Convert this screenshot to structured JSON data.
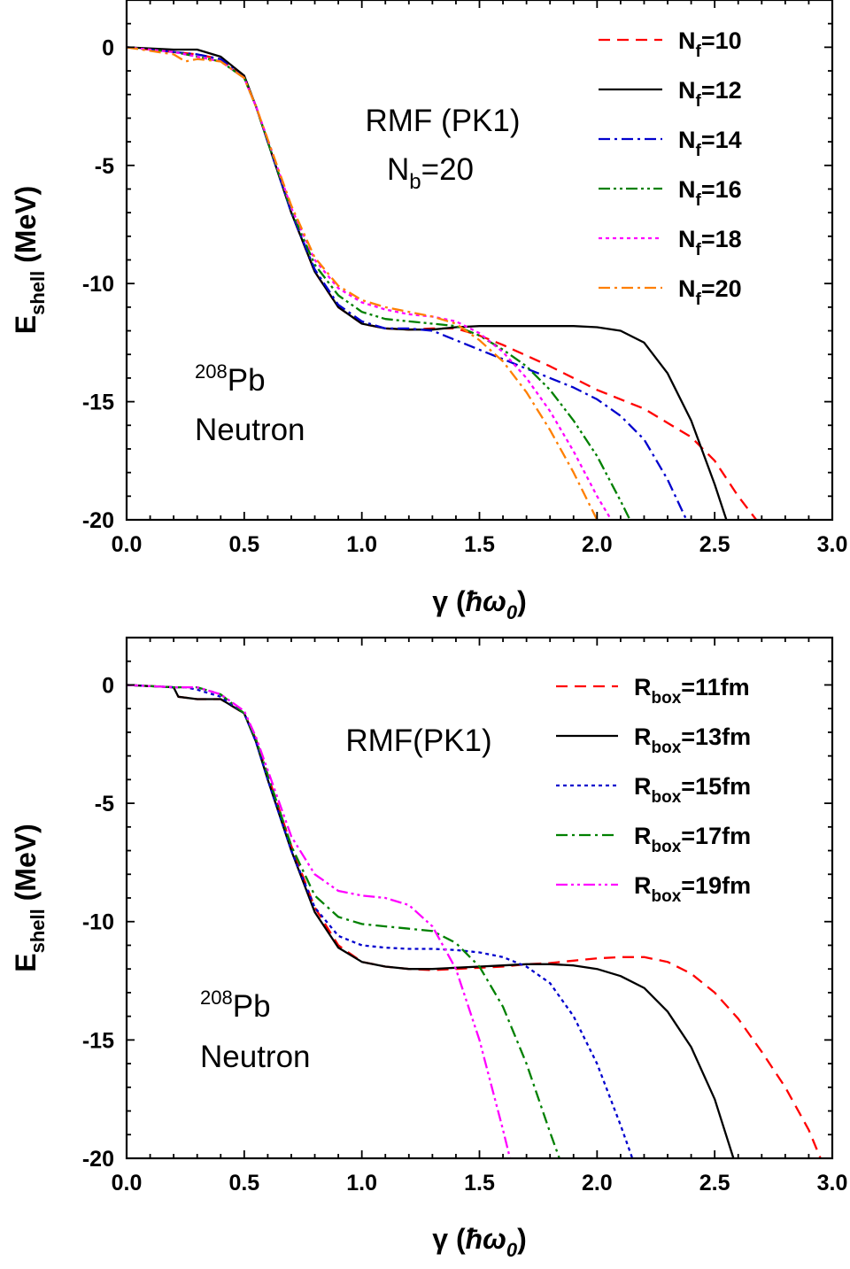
{
  "chart_data": [
    {
      "type": "line",
      "xlabel": "γ (ħω0)",
      "ylabel": "Eshell (MeV)",
      "xlim": [
        0.0,
        3.0
      ],
      "ylim": [
        -20,
        2
      ],
      "xticks": [
        "0.0",
        "0.5",
        "1.0",
        "1.5",
        "2.0",
        "2.5",
        "3.0"
      ],
      "yticks": [
        "0",
        "-5",
        "-10",
        "-15",
        "-20"
      ],
      "legend_position": "top-right",
      "annotations": {
        "method": "RMF (PK1)",
        "param": "Nb=20",
        "nucleus": "208Pb",
        "particle": "Neutron"
      },
      "series": [
        {
          "name": "Nf=10",
          "color": "#ff0000",
          "dash": "dash",
          "x": [
            0.0,
            0.2,
            0.3,
            0.4,
            0.5,
            0.55,
            0.6,
            0.7,
            0.8,
            0.9,
            1.0,
            1.1,
            1.2,
            1.3,
            1.4,
            1.5,
            1.6,
            1.8,
            2.0,
            2.2,
            2.4,
            2.5,
            2.6,
            2.7
          ],
          "y": [
            0,
            -0.2,
            -0.3,
            -0.5,
            -1.3,
            -2.5,
            -4.0,
            -7.0,
            -9.5,
            -11.0,
            -11.7,
            -11.9,
            -11.95,
            -11.9,
            -11.9,
            -12.2,
            -12.6,
            -13.5,
            -14.5,
            -15.3,
            -16.5,
            -17.5,
            -19.0,
            -20.3
          ]
        },
        {
          "name": "Nf=12",
          "color": "#000000",
          "dash": "solid",
          "x": [
            0.0,
            0.2,
            0.3,
            0.4,
            0.5,
            0.55,
            0.6,
            0.7,
            0.8,
            0.9,
            1.0,
            1.1,
            1.2,
            1.3,
            1.4,
            1.5,
            1.6,
            1.7,
            1.8,
            1.9,
            2.0,
            2.1,
            2.2,
            2.3,
            2.4,
            2.5,
            2.55
          ],
          "y": [
            0,
            -0.1,
            -0.1,
            -0.4,
            -1.2,
            -2.5,
            -4.0,
            -7.0,
            -9.5,
            -11.0,
            -11.7,
            -11.9,
            -11.95,
            -11.95,
            -11.85,
            -11.8,
            -11.8,
            -11.8,
            -11.8,
            -11.8,
            -11.85,
            -12.0,
            -12.5,
            -13.8,
            -15.8,
            -18.5,
            -20.0
          ]
        },
        {
          "name": "Nf=14",
          "color": "#0000cd",
          "dash": "dashdot",
          "x": [
            0.0,
            0.2,
            0.3,
            0.4,
            0.5,
            0.55,
            0.6,
            0.7,
            0.8,
            0.9,
            1.0,
            1.1,
            1.2,
            1.3,
            1.4,
            1.5,
            1.6,
            1.7,
            1.8,
            1.9,
            2.0,
            2.1,
            2.2,
            2.3,
            2.38
          ],
          "y": [
            0,
            -0.2,
            -0.3,
            -0.5,
            -1.3,
            -2.5,
            -4.0,
            -7.0,
            -9.4,
            -10.9,
            -11.6,
            -11.9,
            -11.9,
            -12.0,
            -12.4,
            -12.8,
            -13.2,
            -13.6,
            -14.0,
            -14.4,
            -14.9,
            -15.6,
            -16.6,
            -18.3,
            -20.0
          ]
        },
        {
          "name": "Nf=16",
          "color": "#008000",
          "dash": "dashdotdot",
          "x": [
            0.0,
            0.2,
            0.3,
            0.4,
            0.5,
            0.55,
            0.6,
            0.7,
            0.8,
            0.9,
            1.0,
            1.1,
            1.2,
            1.3,
            1.4,
            1.5,
            1.6,
            1.7,
            1.8,
            1.9,
            2.0,
            2.1,
            2.14
          ],
          "y": [
            0,
            -0.2,
            -0.4,
            -0.6,
            -1.3,
            -2.5,
            -4.0,
            -6.9,
            -9.2,
            -10.5,
            -11.2,
            -11.5,
            -11.6,
            -11.7,
            -11.8,
            -12.2,
            -12.8,
            -13.5,
            -14.5,
            -15.8,
            -17.3,
            -19.2,
            -20.0
          ]
        },
        {
          "name": "Nf=18",
          "color": "#ff00ff",
          "dash": "dot",
          "x": [
            0.0,
            0.2,
            0.3,
            0.4,
            0.5,
            0.55,
            0.6,
            0.7,
            0.8,
            0.9,
            1.0,
            1.1,
            1.2,
            1.3,
            1.4,
            1.5,
            1.6,
            1.7,
            1.8,
            1.9,
            2.0,
            2.06
          ],
          "y": [
            0,
            -0.2,
            -0.4,
            -0.6,
            -1.3,
            -2.5,
            -3.9,
            -6.8,
            -9.0,
            -10.2,
            -10.8,
            -11.1,
            -11.3,
            -11.4,
            -11.6,
            -12.1,
            -12.9,
            -14.0,
            -15.4,
            -17.1,
            -19.0,
            -20.0
          ]
        },
        {
          "name": "Nf=20",
          "color": "#ff7f00",
          "dash": "dashdot",
          "x": [
            0.0,
            0.2,
            0.25,
            0.3,
            0.4,
            0.5,
            0.55,
            0.6,
            0.7,
            0.8,
            0.9,
            1.0,
            1.1,
            1.2,
            1.3,
            1.4,
            1.5,
            1.6,
            1.7,
            1.8,
            1.9,
            2.0
          ],
          "y": [
            0,
            -0.3,
            -0.6,
            -0.5,
            -0.6,
            -1.3,
            -2.5,
            -3.9,
            -6.7,
            -8.9,
            -10.1,
            -10.7,
            -11.0,
            -11.2,
            -11.4,
            -11.7,
            -12.4,
            -13.3,
            -14.6,
            -16.2,
            -18.0,
            -20.0
          ]
        }
      ]
    },
    {
      "type": "line",
      "xlabel": "γ (ħω0)",
      "ylabel": "Eshell (MeV)",
      "xlim": [
        0.0,
        3.0
      ],
      "ylim": [
        -20,
        2
      ],
      "xticks": [
        "0.0",
        "0.5",
        "1.0",
        "1.5",
        "2.0",
        "2.5",
        "3.0"
      ],
      "yticks": [
        "0",
        "-5",
        "-10",
        "-15",
        "-20"
      ],
      "legend_position": "top-right",
      "annotations": {
        "method": "RMF(PK1)",
        "nucleus": "208Pb",
        "particle": "Neutron"
      },
      "series": [
        {
          "name": "Rbox=11fm",
          "color": "#ff0000",
          "dash": "dash",
          "x": [
            0.0,
            0.2,
            0.22,
            0.3,
            0.4,
            0.5,
            0.55,
            0.6,
            0.7,
            0.8,
            0.9,
            1.0,
            1.1,
            1.2,
            1.3,
            1.4,
            1.5,
            1.6,
            1.7,
            1.8,
            1.9,
            2.0,
            2.1,
            2.2,
            2.3,
            2.4,
            2.5,
            2.6,
            2.7,
            2.8,
            2.9,
            2.95
          ],
          "y": [
            0,
            -0.1,
            -0.5,
            -0.6,
            -0.6,
            -1.2,
            -2.3,
            -3.8,
            -6.8,
            -9.4,
            -11.0,
            -11.7,
            -11.9,
            -12.0,
            -12.05,
            -12.0,
            -11.95,
            -11.9,
            -11.8,
            -11.75,
            -11.65,
            -11.55,
            -11.5,
            -11.5,
            -11.7,
            -12.2,
            -13.0,
            -14.1,
            -15.5,
            -17.0,
            -18.8,
            -20.0
          ]
        },
        {
          "name": "Rbox=13fm",
          "color": "#000000",
          "dash": "solid",
          "x": [
            0.0,
            0.2,
            0.22,
            0.3,
            0.4,
            0.5,
            0.55,
            0.6,
            0.7,
            0.8,
            0.9,
            1.0,
            1.1,
            1.2,
            1.3,
            1.4,
            1.5,
            1.6,
            1.7,
            1.8,
            1.9,
            2.0,
            2.1,
            2.2,
            2.3,
            2.4,
            2.5,
            2.58
          ],
          "y": [
            0,
            -0.1,
            -0.5,
            -0.6,
            -0.6,
            -1.2,
            -2.4,
            -4.0,
            -7.0,
            -9.6,
            -11.1,
            -11.7,
            -11.9,
            -12.0,
            -12.0,
            -11.95,
            -11.9,
            -11.85,
            -11.8,
            -11.8,
            -11.85,
            -12.0,
            -12.3,
            -12.8,
            -13.8,
            -15.3,
            -17.5,
            -20.0
          ]
        },
        {
          "name": "Rbox=15fm",
          "color": "#0000cd",
          "dash": "dot",
          "x": [
            0.0,
            0.2,
            0.25,
            0.3,
            0.4,
            0.5,
            0.55,
            0.6,
            0.7,
            0.8,
            0.9,
            1.0,
            1.1,
            1.2,
            1.3,
            1.4,
            1.5,
            1.6,
            1.7,
            1.8,
            1.9,
            2.0,
            2.1,
            2.15
          ],
          "y": [
            0,
            -0.1,
            -0.1,
            -0.2,
            -0.5,
            -1.2,
            -2.4,
            -4.0,
            -7.0,
            -9.4,
            -10.6,
            -11.0,
            -11.1,
            -11.15,
            -11.15,
            -11.2,
            -11.3,
            -11.5,
            -11.9,
            -12.6,
            -14.0,
            -16.0,
            -18.6,
            -20.0
          ]
        },
        {
          "name": "Rbox=17fm",
          "color": "#008000",
          "dash": "dashdot",
          "x": [
            0.0,
            0.2,
            0.3,
            0.4,
            0.5,
            0.55,
            0.6,
            0.7,
            0.8,
            0.9,
            1.0,
            1.1,
            1.2,
            1.3,
            1.4,
            1.5,
            1.6,
            1.7,
            1.8,
            1.84
          ],
          "y": [
            0,
            -0.1,
            -0.1,
            -0.4,
            -1.2,
            -2.3,
            -3.8,
            -6.8,
            -8.9,
            -9.8,
            -10.1,
            -10.2,
            -10.3,
            -10.4,
            -10.9,
            -11.9,
            -13.6,
            -16.0,
            -18.9,
            -20.0
          ]
        },
        {
          "name": "Rbox=19fm",
          "color": "#ff00ff",
          "dash": "dashdotdot",
          "x": [
            0.0,
            0.2,
            0.3,
            0.4,
            0.5,
            0.55,
            0.6,
            0.7,
            0.8,
            0.9,
            1.0,
            1.1,
            1.2,
            1.3,
            1.4,
            1.5,
            1.6,
            1.63
          ],
          "y": [
            0,
            -0.1,
            -0.1,
            -0.4,
            -1.1,
            -2.2,
            -3.6,
            -6.4,
            -8.0,
            -8.7,
            -8.9,
            -9.0,
            -9.3,
            -10.2,
            -12.0,
            -15.0,
            -18.8,
            -20.0
          ]
        }
      ]
    }
  ]
}
